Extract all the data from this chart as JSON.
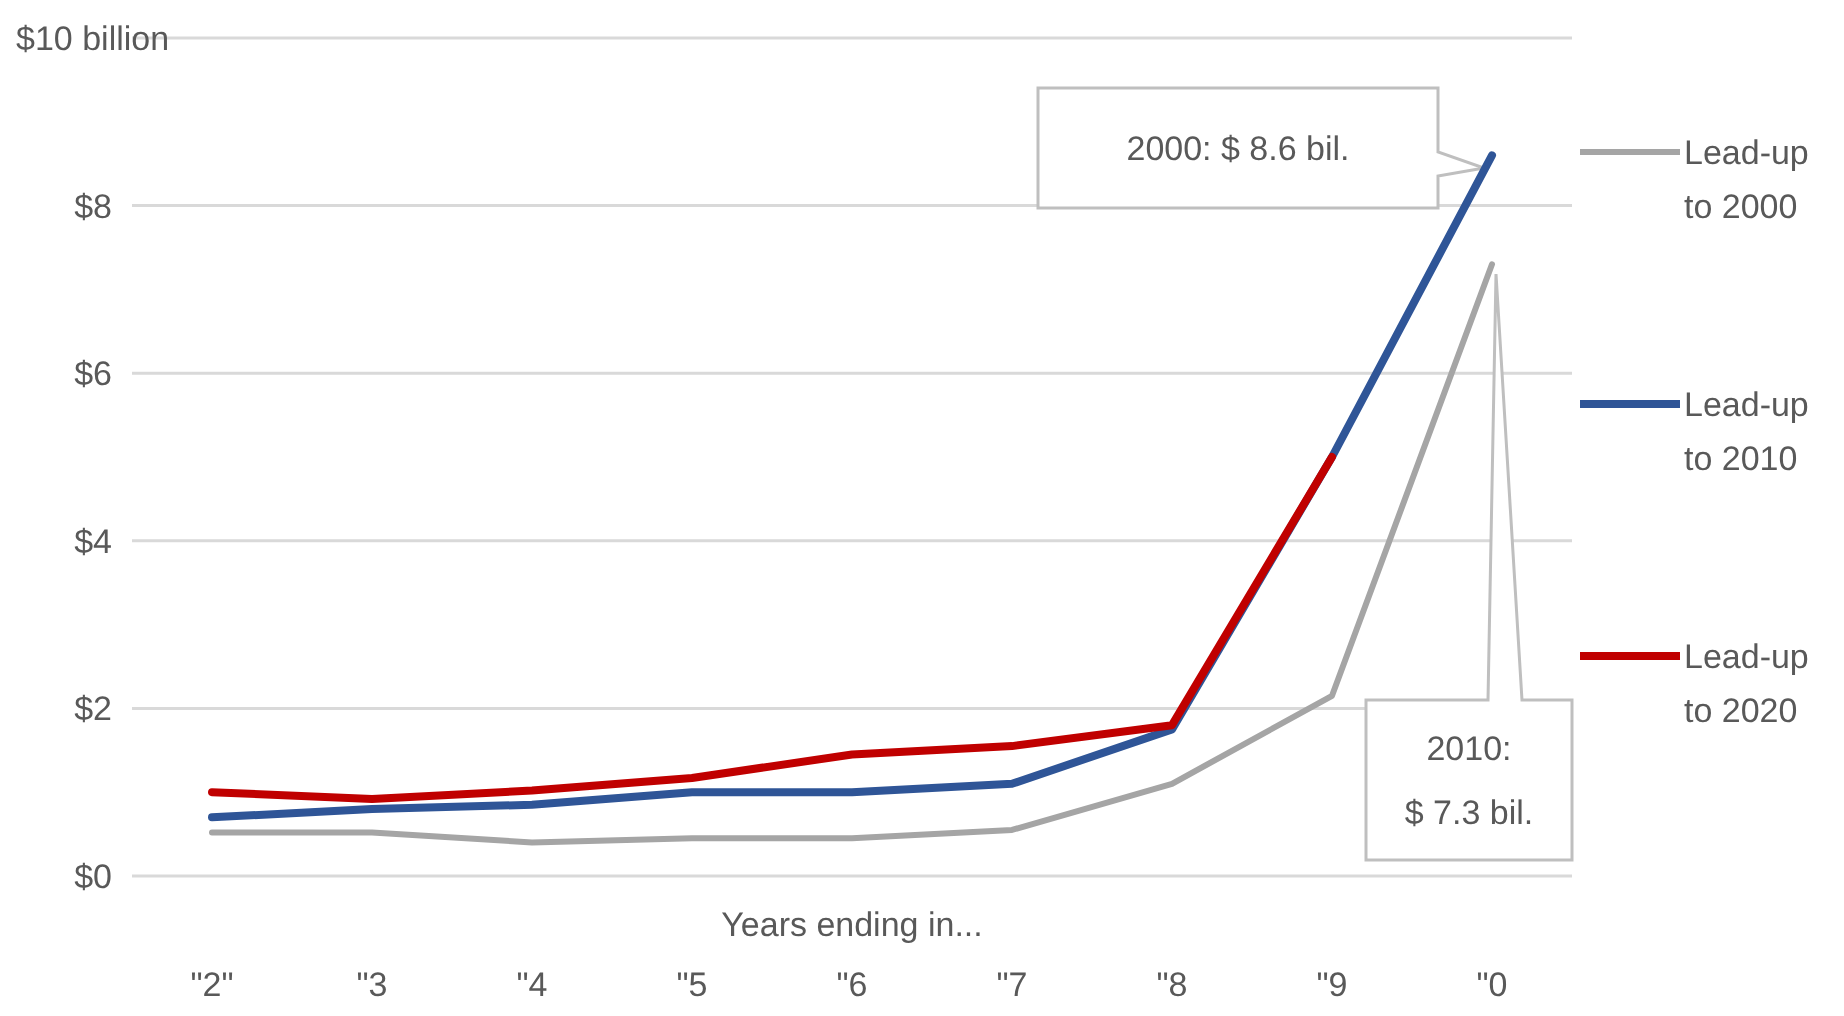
{
  "chart_data": {
    "type": "line",
    "xlabel": "Years ending in...",
    "categories": [
      "\"2\"",
      "\"3",
      "\"4",
      "\"5",
      "\"6",
      "\"7",
      "\"8",
      "\"9",
      "\"0"
    ],
    "ylim": [
      0,
      10
    ],
    "yticks": [
      {
        "value": 0,
        "label": "$0"
      },
      {
        "value": 2,
        "label": "$2"
      },
      {
        "value": 4,
        "label": "$4"
      },
      {
        "value": 6,
        "label": "$6"
      },
      {
        "value": 8,
        "label": "$8"
      },
      {
        "value": 10,
        "label": "$10 billion"
      }
    ],
    "grid": "y",
    "legend": "right",
    "line_style": "solid",
    "marker": "none",
    "series": [
      {
        "name": "Lead-up to 2000",
        "color": "#a5a5a5",
        "values": [
          0.52,
          0.52,
          0.4,
          0.45,
          0.45,
          0.55,
          1.1,
          2.15,
          7.3
        ]
      },
      {
        "name": "Lead-up to 2010",
        "color": "#2f5597",
        "values": [
          0.7,
          0.8,
          0.85,
          1.0,
          1.0,
          1.1,
          1.75,
          5.0,
          8.6
        ]
      },
      {
        "name": "Lead-up to 2020",
        "color": "#c00000",
        "values": [
          1.0,
          0.92,
          1.02,
          1.17,
          1.45,
          1.55,
          1.8,
          5.0,
          null
        ]
      }
    ],
    "annotations": [
      "2000: $ 8.6 bil.",
      "2010:\n$ 7.3 bil."
    ]
  }
}
